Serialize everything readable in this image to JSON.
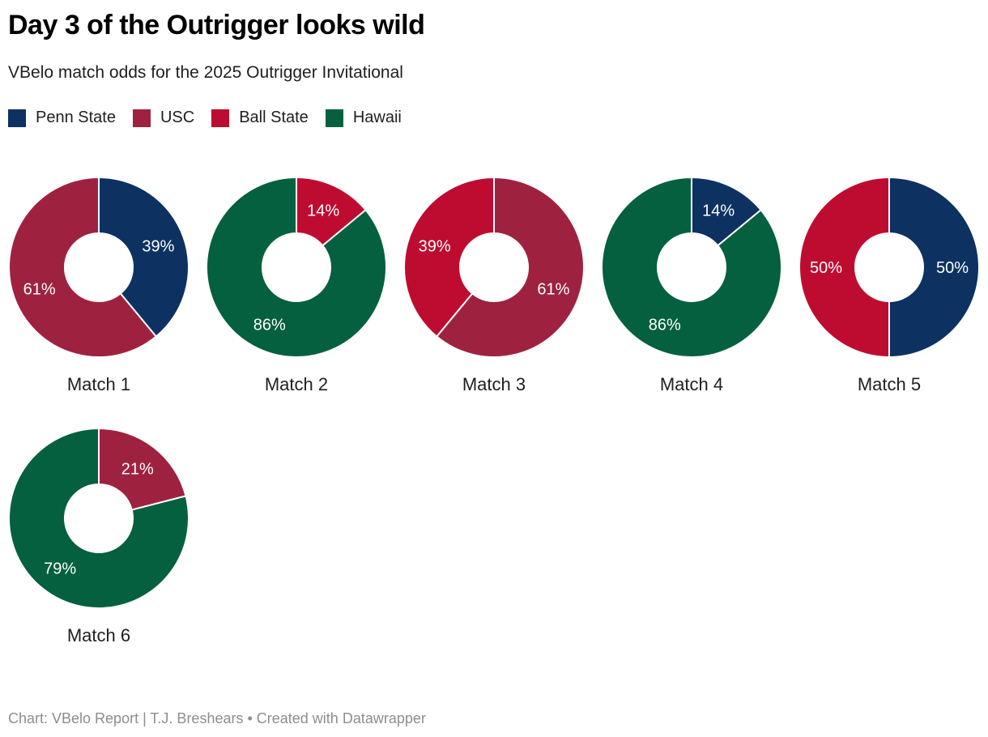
{
  "chart_data": {
    "type": "pie",
    "variant": "donut_small_multiples",
    "title": "Day 3 of the Outrigger looks wild",
    "subtitle": "VBelo match odds for the 2025 Outrigger Invitational",
    "unit": "%",
    "legend_position": "top",
    "legend": [
      {
        "label": "Penn State",
        "color": "#0d3161"
      },
      {
        "label": "USC",
        "color": "#9e2240"
      },
      {
        "label": "Ball State",
        "color": "#be0c30"
      },
      {
        "label": "Hawaii",
        "color": "#04603f"
      }
    ],
    "donut_geometry": {
      "size": 224,
      "outer_radius": 112,
      "inner_radius": 42,
      "label_radius": 78,
      "slice_separator_color": "#ffffff",
      "slice_label_color": "#ffffff",
      "start_angle_deg": 0,
      "direction": "clockwise"
    },
    "matches": [
      {
        "label": "Match 1",
        "slices": [
          {
            "team": "Penn State",
            "value": 39
          },
          {
            "team": "USC",
            "value": 61
          }
        ]
      },
      {
        "label": "Match 2",
        "slices": [
          {
            "team": "Ball State",
            "value": 14
          },
          {
            "team": "Hawaii",
            "value": 86
          }
        ]
      },
      {
        "label": "Match 3",
        "slices": [
          {
            "team": "USC",
            "value": 61
          },
          {
            "team": "Ball State",
            "value": 39
          }
        ]
      },
      {
        "label": "Match 4",
        "slices": [
          {
            "team": "Penn State",
            "value": 14
          },
          {
            "team": "Hawaii",
            "value": 86
          }
        ]
      },
      {
        "label": "Match 5",
        "slices": [
          {
            "team": "Penn State",
            "value": 50
          },
          {
            "team": "Ball State",
            "value": 50
          }
        ]
      },
      {
        "label": "Match 6",
        "slices": [
          {
            "team": "USC",
            "value": 21
          },
          {
            "team": "Hawaii",
            "value": 79
          }
        ]
      }
    ]
  },
  "footer": {
    "text": "Chart: VBelo Report | T.J. Breshears • Created with Datawrapper"
  }
}
